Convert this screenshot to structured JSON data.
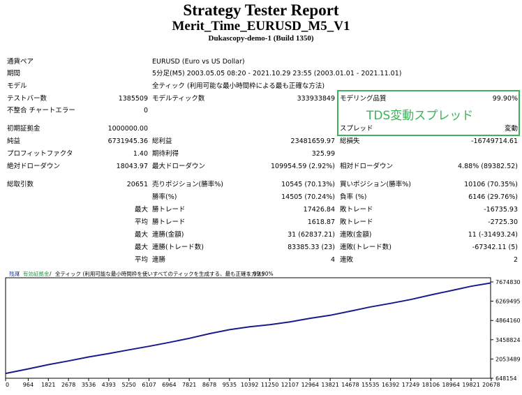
{
  "header": {
    "title": "Strategy Tester Report",
    "ea": "Merit_Time_EURUSD_M5_V1",
    "server": "Dukascopy-demo-1 (Build 1350)"
  },
  "info": {
    "pair_label": "通貨ペア",
    "pair": "EURUSD (Euro vs US Dollar)",
    "period_label": "期間",
    "period": "5分足(M5) 2003.05.05 08:20 - 2021.10.29 23:55 (2003.01.01 - 2021.11.01)",
    "model_label": "モデル",
    "model": "全ティック (利用可能な最小時間枠による最も正確な方法)"
  },
  "summary": {
    "bars_label": "テストバー数",
    "bars": "1385509",
    "ticks_label": "モデルティック数",
    "ticks": "333933849",
    "quality_label": "モデリング品質",
    "quality": "99.90%",
    "mismatch_label": "不整合 チャートエラー",
    "mismatch": "0",
    "spread_label": "スプレッド",
    "spread": "変動",
    "annotation": "TDS変動スプレッド",
    "deposit_label": "初期証拠金",
    "deposit": "1000000.00",
    "net_label": "純益",
    "net": "6731945.36",
    "gross_profit_label": "総利益",
    "gross_profit": "23481659.97",
    "gross_loss_label": "総損失",
    "gross_loss": "-16749714.61",
    "pf_label": "プロフィットファクタ",
    "pf": "1.40",
    "payoff_label": "期待利得",
    "payoff": "325.99",
    "abs_dd_label": "絶対ドローダウン",
    "abs_dd": "18043.97",
    "max_dd_label": "最大ドローダウン",
    "max_dd": "109954.59 (2.92%)",
    "rel_dd_label": "相対ドローダウン",
    "rel_dd": "4.88% (89382.52)"
  },
  "trades": {
    "total_label": "総取引数",
    "total": "20651",
    "short_label": "売りポジション(勝率%)",
    "short": "10545 (70.13%)",
    "long_label": "買いポジション(勝率%)",
    "long": "10106 (70.35%)",
    "win_label": "勝率(%)",
    "win": "14505 (70.24%)",
    "loss_label": "負率 (%)",
    "loss": "6146 (29.76%)",
    "rows": [
      {
        "q": "最大",
        "a_label": "勝トレード",
        "a": "17426.84",
        "b_label": "敗トレード",
        "b": "-16735.93"
      },
      {
        "q": "平均",
        "a_label": "勝トレード",
        "a": "1618.87",
        "b_label": "敗トレード",
        "b": "-2725.30"
      },
      {
        "q": "最大",
        "a_label": "連勝(金額)",
        "a": "31 (62837.21)",
        "b_label": "連敗(金額)",
        "b": "11 (-31493.24)"
      },
      {
        "q": "最大",
        "a_label": "連勝(トレード数)",
        "a": "83385.33 (23)",
        "b_label": "連敗(トレード数)",
        "b": "-67342.11 (5)"
      },
      {
        "q": "平均",
        "a_label": "連勝",
        "a": "4",
        "b_label": "連敗",
        "b": "2"
      }
    ]
  },
  "chart_data": {
    "type": "line",
    "legend": [
      "残高",
      "有効証拠金",
      "全ティック (利用可能な最小時間枠を使いすべてのティックを生成する、最も正確な方法)",
      "99.90%"
    ],
    "legend_colors": [
      "#1f3fb0",
      "#1f9a3a",
      "#000000",
      "#000000"
    ],
    "x_ticks": [
      "0",
      "964",
      "1821",
      "2678",
      "3536",
      "4393",
      "5250",
      "6107",
      "6964",
      "7821",
      "8678",
      "9535",
      "10392",
      "11250",
      "12107",
      "12964",
      "13821",
      "14678",
      "15535",
      "16392",
      "17249",
      "18106",
      "18964",
      "19821",
      "20678"
    ],
    "y_ticks": [
      "7674830",
      "6269495",
      "4864160",
      "3458824",
      "2053489",
      "648154"
    ],
    "ylim": [
      648154,
      7674830
    ],
    "xlim": [
      0,
      20651
    ],
    "x": [
      0,
      964,
      1821,
      2678,
      3536,
      4393,
      5250,
      6107,
      6964,
      7821,
      8678,
      9535,
      10392,
      11250,
      12107,
      12964,
      13821,
      14678,
      15535,
      16392,
      17249,
      18106,
      18964,
      19821,
      20651
    ],
    "series": [
      {
        "values": [
          1000000,
          1330000,
          1640000,
          1910000,
          2200000,
          2450000,
          2720000,
          2980000,
          3260000,
          3560000,
          3900000,
          4190000,
          4400000,
          4560000,
          4760000,
          5020000,
          5240000,
          5540000,
          5850000,
          6110000,
          6390000,
          6730000,
          7040000,
          7360000,
          7600000
        ],
        "color": "#1a1a8c"
      }
    ]
  }
}
